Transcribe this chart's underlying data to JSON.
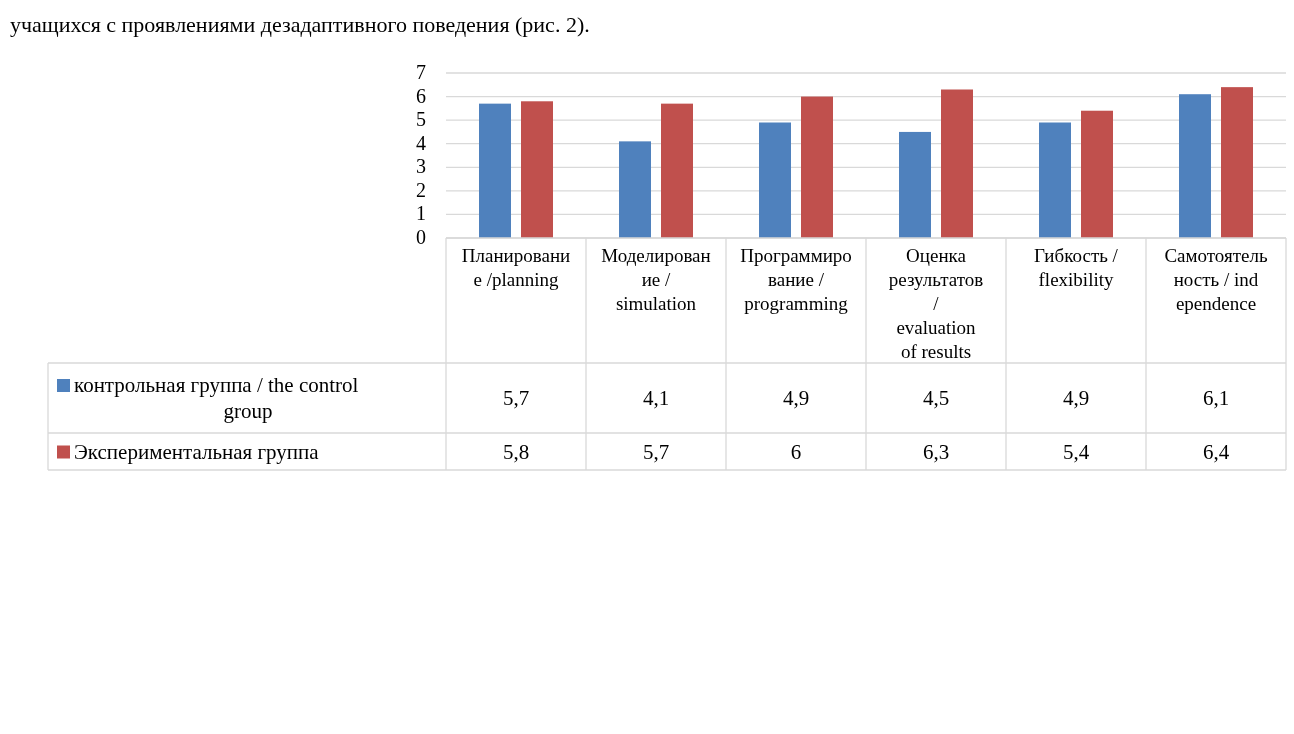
{
  "chart_data": {
    "type": "bar",
    "annotations": [
      "учащихся с проявлениями дезадаптивного поведения (рис. 2)."
    ],
    "categories": [
      "Планирование /planning",
      "Моделирование / simulation",
      "Программирование / programming",
      "Оценка результатов / evaluation of results",
      "Гибкость / flexibility",
      "Самотоятельность / independence"
    ],
    "series": [
      {
        "name": "контрольная группа / the control group",
        "color": "#4f81bd",
        "values": [
          5.7,
          4.1,
          4.9,
          4.5,
          4.9,
          6.1
        ],
        "value_labels": [
          "5,7",
          "4,1",
          "4,9",
          "4,5",
          "4,9",
          "6,1"
        ]
      },
      {
        "name": "Экспериментальная группа",
        "color": "#c0504d",
        "values": [
          5.8,
          5.7,
          6,
          6.3,
          5.4,
          6.4
        ],
        "value_labels": [
          "5,8",
          "5,7",
          "6",
          "6,3",
          "5,4",
          "6,4"
        ]
      }
    ],
    "ylim": [
      0,
      7
    ],
    "yticks": [
      0,
      1,
      2,
      3,
      4,
      5,
      6,
      7
    ],
    "grid": "y",
    "legend": "bottom"
  }
}
